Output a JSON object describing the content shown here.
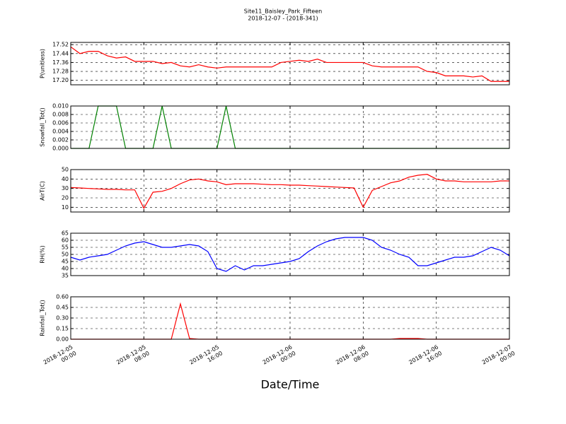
{
  "title": "Site11_Baisley_Park_Fifteen",
  "subtitle": "2018-12-07 - (2018-341)",
  "xlabel": "Date/Time",
  "chart_data": [
    {
      "type": "line",
      "ylabel": "P(unitless)",
      "color": "#ff0000",
      "xlim": [
        "2018-12-05 00:00",
        "2018-12-07 00:00"
      ],
      "ylim": [
        17.16,
        17.54
      ],
      "yticks": [
        {
          "value": 17.2,
          "label": "17.20"
        },
        {
          "value": 17.28,
          "label": "17.28"
        },
        {
          "value": 17.36,
          "label": "17.36"
        },
        {
          "value": 17.44,
          "label": "17.44"
        },
        {
          "value": 17.52,
          "label": "17.52"
        }
      ],
      "x": [
        "2018-12-05 00:00",
        "2018-12-05 01:00",
        "2018-12-05 02:00",
        "2018-12-05 03:00",
        "2018-12-05 04:00",
        "2018-12-05 05:00",
        "2018-12-05 06:00",
        "2018-12-05 07:00",
        "2018-12-05 08:00",
        "2018-12-05 09:00",
        "2018-12-05 10:00",
        "2018-12-05 11:00",
        "2018-12-05 12:00",
        "2018-12-05 13:00",
        "2018-12-05 14:00",
        "2018-12-05 15:00",
        "2018-12-05 16:00",
        "2018-12-05 17:00",
        "2018-12-05 18:00",
        "2018-12-05 19:00",
        "2018-12-05 20:00",
        "2018-12-05 21:00",
        "2018-12-05 22:00",
        "2018-12-05 23:00",
        "2018-12-06 00:00",
        "2018-12-06 01:00",
        "2018-12-06 02:00",
        "2018-12-06 03:00",
        "2018-12-06 04:00",
        "2018-12-06 05:00",
        "2018-12-06 06:00",
        "2018-12-06 07:00",
        "2018-12-06 08:00",
        "2018-12-06 09:00",
        "2018-12-06 10:00",
        "2018-12-06 11:00",
        "2018-12-06 12:00",
        "2018-12-06 13:00",
        "2018-12-06 14:00",
        "2018-12-06 15:00",
        "2018-12-06 16:00",
        "2018-12-06 17:00",
        "2018-12-06 18:00",
        "2018-12-06 19:00",
        "2018-12-06 20:00",
        "2018-12-06 21:00",
        "2018-12-06 22:00",
        "2018-12-06 23:00",
        "2018-12-07 00:00"
      ],
      "values": [
        17.5,
        17.44,
        17.46,
        17.46,
        17.42,
        17.4,
        17.41,
        17.37,
        17.37,
        17.37,
        17.35,
        17.36,
        17.33,
        17.32,
        17.34,
        17.32,
        17.31,
        17.32,
        17.32,
        17.32,
        17.32,
        17.32,
        17.32,
        17.36,
        17.37,
        17.38,
        17.37,
        17.39,
        17.36,
        17.36,
        17.36,
        17.36,
        17.36,
        17.33,
        17.32,
        17.32,
        17.32,
        17.32,
        17.32,
        17.28,
        17.27,
        17.24,
        17.24,
        17.24,
        17.23,
        17.24,
        17.19,
        17.19,
        17.19
      ]
    },
    {
      "type": "line",
      "ylabel": "Snowfall_Tot()",
      "color": "#008000",
      "xlim": [
        "2018-12-05 00:00",
        "2018-12-07 00:00"
      ],
      "ylim": [
        0,
        0.01
      ],
      "yticks": [
        {
          "value": 0,
          "label": "0.000"
        },
        {
          "value": 0.002,
          "label": "0.002"
        },
        {
          "value": 0.004,
          "label": "0.004"
        },
        {
          "value": 0.006,
          "label": "0.006"
        },
        {
          "value": 0.008,
          "label": "0.008"
        },
        {
          "value": 0.01,
          "label": "0.010"
        }
      ],
      "x": [
        "2018-12-05 00:00",
        "2018-12-05 01:00",
        "2018-12-05 02:00",
        "2018-12-05 03:00",
        "2018-12-05 04:00",
        "2018-12-05 05:00",
        "2018-12-05 06:00",
        "2018-12-05 07:00",
        "2018-12-05 08:00",
        "2018-12-05 09:00",
        "2018-12-05 10:00",
        "2018-12-05 11:00",
        "2018-12-05 12:00",
        "2018-12-05 13:00",
        "2018-12-05 14:00",
        "2018-12-05 15:00",
        "2018-12-05 16:00",
        "2018-12-05 17:00",
        "2018-12-05 18:00",
        "2018-12-05 19:00",
        "2018-12-05 20:00",
        "2018-12-05 21:00",
        "2018-12-05 22:00",
        "2018-12-05 23:00",
        "2018-12-06 00:00",
        "2018-12-06 01:00",
        "2018-12-06 02:00",
        "2018-12-06 03:00",
        "2018-12-06 04:00",
        "2018-12-06 05:00",
        "2018-12-06 06:00",
        "2018-12-06 07:00",
        "2018-12-06 08:00",
        "2018-12-06 09:00",
        "2018-12-06 10:00",
        "2018-12-06 11:00",
        "2018-12-06 12:00",
        "2018-12-06 13:00",
        "2018-12-06 14:00",
        "2018-12-06 15:00",
        "2018-12-06 16:00",
        "2018-12-06 17:00",
        "2018-12-06 18:00",
        "2018-12-06 19:00",
        "2018-12-06 20:00",
        "2018-12-06 21:00",
        "2018-12-06 22:00",
        "2018-12-06 23:00",
        "2018-12-07 00:00"
      ],
      "values": [
        0,
        0,
        0,
        0.01,
        0.01,
        0.01,
        0,
        0,
        0,
        0,
        0.01,
        0,
        0,
        0,
        0,
        0,
        0,
        0.01,
        0,
        0,
        0,
        0,
        0,
        0,
        0,
        0,
        0,
        0,
        0,
        0,
        0,
        0,
        0,
        0,
        0,
        0,
        0,
        0,
        0,
        0,
        0,
        0,
        0,
        0,
        0,
        0,
        0,
        0,
        0
      ]
    },
    {
      "type": "line",
      "ylabel": "AirT(C)",
      "color": "#ff0000",
      "xlim": [
        "2018-12-05 00:00",
        "2018-12-07 00:00"
      ],
      "ylim": [
        5,
        50
      ],
      "yticks": [
        10,
        20,
        30,
        40,
        50
      ],
      "x": [
        "2018-12-05 00:00",
        "2018-12-05 01:00",
        "2018-12-05 02:00",
        "2018-12-05 03:00",
        "2018-12-05 04:00",
        "2018-12-05 05:00",
        "2018-12-05 06:00",
        "2018-12-05 07:00",
        "2018-12-05 08:00",
        "2018-12-05 09:00",
        "2018-12-05 10:00",
        "2018-12-05 11:00",
        "2018-12-05 12:00",
        "2018-12-05 13:00",
        "2018-12-05 14:00",
        "2018-12-05 15:00",
        "2018-12-05 16:00",
        "2018-12-05 17:00",
        "2018-12-05 18:00",
        "2018-12-05 19:00",
        "2018-12-05 20:00",
        "2018-12-05 21:00",
        "2018-12-05 22:00",
        "2018-12-05 23:00",
        "2018-12-06 00:00",
        "2018-12-06 01:00",
        "2018-12-06 02:00",
        "2018-12-06 03:00",
        "2018-12-06 04:00",
        "2018-12-06 05:00",
        "2018-12-06 06:00",
        "2018-12-06 07:00",
        "2018-12-06 08:00",
        "2018-12-06 09:00",
        "2018-12-06 10:00",
        "2018-12-06 11:00",
        "2018-12-06 12:00",
        "2018-12-06 13:00",
        "2018-12-06 14:00",
        "2018-12-06 15:00",
        "2018-12-06 16:00",
        "2018-12-06 17:00",
        "2018-12-06 18:00",
        "2018-12-06 19:00",
        "2018-12-06 20:00",
        "2018-12-06 21:00",
        "2018-12-06 22:00",
        "2018-12-06 23:00",
        "2018-12-07 00:00"
      ],
      "values": [
        31,
        30.5,
        30,
        29.5,
        29,
        29,
        28.5,
        28.5,
        9,
        26,
        27,
        30,
        35,
        39,
        40,
        38,
        37,
        34,
        35,
        35,
        35,
        34.5,
        34,
        34,
        33.5,
        33.5,
        33,
        32.5,
        32,
        31.5,
        31,
        30.5,
        10,
        28,
        32,
        36,
        38,
        42,
        44,
        45,
        40,
        38,
        38,
        37,
        37,
        37,
        37,
        38,
        38
      ]
    },
    {
      "type": "line",
      "ylabel": "RH(%)",
      "color": "#0000ff",
      "xlim": [
        "2018-12-05 00:00",
        "2018-12-07 00:00"
      ],
      "ylim": [
        35,
        65
      ],
      "yticks": [
        35,
        40,
        45,
        50,
        55,
        60,
        65
      ],
      "x": [
        "2018-12-05 00:00",
        "2018-12-05 01:00",
        "2018-12-05 02:00",
        "2018-12-05 03:00",
        "2018-12-05 04:00",
        "2018-12-05 05:00",
        "2018-12-05 06:00",
        "2018-12-05 07:00",
        "2018-12-05 08:00",
        "2018-12-05 09:00",
        "2018-12-05 10:00",
        "2018-12-05 11:00",
        "2018-12-05 12:00",
        "2018-12-05 13:00",
        "2018-12-05 14:00",
        "2018-12-05 15:00",
        "2018-12-05 16:00",
        "2018-12-05 17:00",
        "2018-12-05 18:00",
        "2018-12-05 19:00",
        "2018-12-05 20:00",
        "2018-12-05 21:00",
        "2018-12-05 22:00",
        "2018-12-05 23:00",
        "2018-12-06 00:00",
        "2018-12-06 01:00",
        "2018-12-06 02:00",
        "2018-12-06 03:00",
        "2018-12-06 04:00",
        "2018-12-06 05:00",
        "2018-12-06 06:00",
        "2018-12-06 07:00",
        "2018-12-06 08:00",
        "2018-12-06 09:00",
        "2018-12-06 10:00",
        "2018-12-06 11:00",
        "2018-12-06 12:00",
        "2018-12-06 13:00",
        "2018-12-06 14:00",
        "2018-12-06 15:00",
        "2018-12-06 16:00",
        "2018-12-06 17:00",
        "2018-12-06 18:00",
        "2018-12-06 19:00",
        "2018-12-06 20:00",
        "2018-12-06 21:00",
        "2018-12-06 22:00",
        "2018-12-06 23:00",
        "2018-12-07 00:00"
      ],
      "values": [
        48,
        46,
        48,
        49,
        50,
        53,
        56,
        58,
        59,
        57,
        55,
        55,
        56,
        57,
        56,
        52,
        40,
        38,
        42,
        39,
        42,
        42,
        43,
        44,
        45,
        47,
        52,
        56,
        59,
        61,
        62,
        62,
        62,
        60,
        55,
        53,
        50,
        48,
        42,
        42,
        44,
        46,
        48,
        48,
        49,
        52,
        55,
        53,
        49
      ]
    },
    {
      "type": "line",
      "ylabel": "Rainfall_Tot()",
      "color": "#ff0000",
      "xlim": [
        "2018-12-05 00:00",
        "2018-12-07 00:00"
      ],
      "ylim": [
        0,
        0.6
      ],
      "yticks": [
        {
          "value": 0,
          "label": "0.00"
        },
        {
          "value": 0.15,
          "label": "0.15"
        },
        {
          "value": 0.3,
          "label": "0.30"
        },
        {
          "value": 0.45,
          "label": "0.45"
        },
        {
          "value": 0.6,
          "label": "0.60"
        }
      ],
      "xticks": [
        "2018-12-05 00:00",
        "2018-12-05 08:00",
        "2018-12-05 16:00",
        "2018-12-06 00:00",
        "2018-12-06 08:00",
        "2018-12-06 16:00",
        "2018-12-07 00:00"
      ],
      "x": [
        "2018-12-05 00:00",
        "2018-12-05 01:00",
        "2018-12-05 02:00",
        "2018-12-05 03:00",
        "2018-12-05 04:00",
        "2018-12-05 05:00",
        "2018-12-05 06:00",
        "2018-12-05 07:00",
        "2018-12-05 08:00",
        "2018-12-05 09:00",
        "2018-12-05 10:00",
        "2018-12-05 11:00",
        "2018-12-05 12:00",
        "2018-12-05 13:00",
        "2018-12-05 14:00",
        "2018-12-05 15:00",
        "2018-12-05 16:00",
        "2018-12-05 17:00",
        "2018-12-05 18:00",
        "2018-12-05 19:00",
        "2018-12-05 20:00",
        "2018-12-05 21:00",
        "2018-12-05 22:00",
        "2018-12-05 23:00",
        "2018-12-06 00:00",
        "2018-12-06 01:00",
        "2018-12-06 02:00",
        "2018-12-06 03:00",
        "2018-12-06 04:00",
        "2018-12-06 05:00",
        "2018-12-06 06:00",
        "2018-12-06 07:00",
        "2018-12-06 08:00",
        "2018-12-06 09:00",
        "2018-12-06 10:00",
        "2018-12-06 11:00",
        "2018-12-06 12:00",
        "2018-12-06 13:00",
        "2018-12-06 14:00",
        "2018-12-06 15:00",
        "2018-12-06 16:00",
        "2018-12-06 17:00",
        "2018-12-06 18:00",
        "2018-12-06 19:00",
        "2018-12-06 20:00",
        "2018-12-06 21:00",
        "2018-12-06 22:00",
        "2018-12-06 23:00",
        "2018-12-07 00:00"
      ],
      "values": [
        0,
        0,
        0,
        0,
        0,
        0,
        0,
        0,
        0,
        0,
        0,
        0,
        0.5,
        0.01,
        0,
        0,
        0,
        0,
        0,
        0,
        0,
        0,
        0,
        0,
        0,
        0,
        0,
        0,
        0,
        0,
        0,
        0,
        0,
        0,
        0,
        0,
        0.01,
        0.01,
        0.01,
        0,
        0,
        0,
        0,
        0,
        0,
        0,
        0,
        0,
        0
      ]
    }
  ]
}
